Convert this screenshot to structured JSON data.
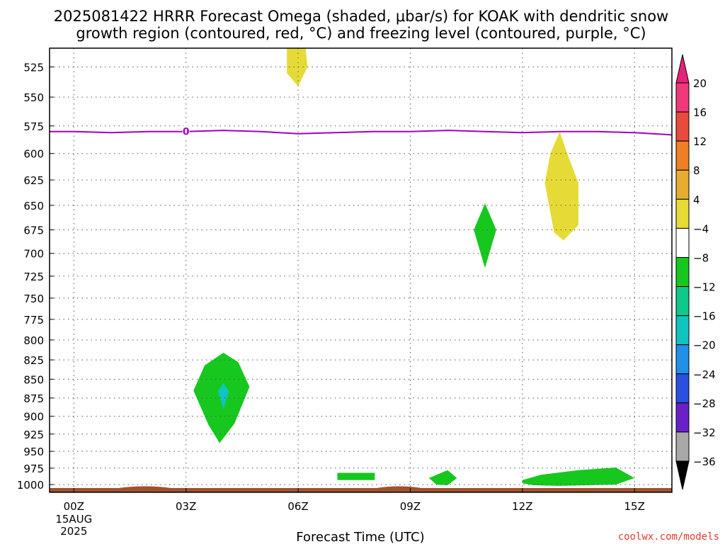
{
  "chart_data": {
    "type": "contour",
    "title_line1": "2025081422 HRRR Forecast Omega (shaded, μbar/s) for KOAK with dendritic snow",
    "title_line2": "growth region (contoured, red, °C) and freezing level (contoured, purple, °C)",
    "xlabel": "Forecast Time (UTC)",
    "credit": "coolwx.com/models",
    "x_axis": {
      "unit": "hours from 00Z 15AUG2025",
      "range": [
        -0.65,
        16.0
      ],
      "ticks": [
        {
          "x": 0,
          "label": "00Z",
          "sub1": "15AUG",
          "sub2": "2025"
        },
        {
          "x": 3,
          "label": "03Z"
        },
        {
          "x": 6,
          "label": "06Z"
        },
        {
          "x": 9,
          "label": "09Z"
        },
        {
          "x": 12,
          "label": "12Z"
        },
        {
          "x": 15,
          "label": "15Z"
        }
      ]
    },
    "y_axis": {
      "unit": "mb",
      "scale": "log",
      "range": [
        1012,
        510
      ],
      "ticks": [
        525,
        550,
        575,
        600,
        625,
        650,
        675,
        700,
        725,
        750,
        775,
        800,
        825,
        850,
        875,
        900,
        925,
        950,
        975,
        1000
      ]
    },
    "grid": true,
    "colorbar": {
      "labels": [
        "20",
        "16",
        "12",
        "8",
        "4",
        "−4",
        "−8",
        "−12",
        "−16",
        "−20",
        "−24",
        "−28",
        "−32",
        "−36"
      ],
      "colors": [
        "#f0387a",
        "#e84a3e",
        "#ee7f22",
        "#e6ad30",
        "#e6db36",
        "#ffffff",
        "#16c81e",
        "#10c88a",
        "#10c4c0",
        "#2090e8",
        "#2a50e0",
        "#6a20c8",
        "#a01ec8",
        "#a8a8a8"
      ],
      "over_color": "#e8207a",
      "under_color": "#000000"
    },
    "freezing_level": {
      "color": "#a000c8",
      "label": "0",
      "label_x": 3,
      "points": [
        [
          -0.65,
          580
        ],
        [
          0,
          580
        ],
        [
          1,
          581
        ],
        [
          2,
          580
        ],
        [
          3,
          580
        ],
        [
          4,
          579
        ],
        [
          5,
          580
        ],
        [
          6,
          582
        ],
        [
          7,
          581
        ],
        [
          8,
          580
        ],
        [
          9,
          580
        ],
        [
          10,
          579
        ],
        [
          11,
          580
        ],
        [
          12,
          581
        ],
        [
          13,
          580
        ],
        [
          14,
          580
        ],
        [
          15,
          581
        ],
        [
          16,
          583
        ]
      ]
    },
    "omega_regions": [
      {
        "value": "4 to 8",
        "color": "#e6db36",
        "points": [
          [
            5.7,
            510
          ],
          [
            6.2,
            510
          ],
          [
            6.25,
            525
          ],
          [
            6.0,
            541
          ],
          [
            5.7,
            530
          ]
        ]
      },
      {
        "value": "4 to 8",
        "color": "#e6db36",
        "points": [
          [
            13.0,
            580
          ],
          [
            13.2,
            600
          ],
          [
            13.5,
            628
          ],
          [
            13.5,
            670
          ],
          [
            13.1,
            686
          ],
          [
            12.85,
            678
          ],
          [
            12.6,
            628
          ],
          [
            12.75,
            600
          ]
        ]
      },
      {
        "value": "-4 to -8",
        "color": "#16c81e",
        "points": [
          [
            11.0,
            648
          ],
          [
            11.3,
            675
          ],
          [
            11.0,
            716
          ],
          [
            10.7,
            675
          ]
        ]
      },
      {
        "value": "-4 to -8",
        "color": "#16c81e",
        "points": [
          [
            4.0,
            816
          ],
          [
            4.4,
            828
          ],
          [
            4.7,
            860
          ],
          [
            4.3,
            910
          ],
          [
            3.9,
            938
          ],
          [
            3.6,
            912
          ],
          [
            3.2,
            865
          ],
          [
            3.5,
            832
          ]
        ]
      },
      {
        "value": "-12 to -16",
        "color": "#10c4c0",
        "points": [
          [
            4.0,
            855
          ],
          [
            4.15,
            866
          ],
          [
            4.0,
            890
          ],
          [
            3.85,
            866
          ]
        ]
      },
      {
        "value": "-4 to -8",
        "color": "#16c81e",
        "points": [
          [
            7.05,
            982
          ],
          [
            8.05,
            982
          ],
          [
            8.05,
            993
          ],
          [
            7.05,
            993
          ]
        ]
      },
      {
        "value": "-4 to -8",
        "color": "#16c81e",
        "points": [
          [
            9.5,
            990
          ],
          [
            10.0,
            978
          ],
          [
            10.25,
            990
          ],
          [
            10.0,
            1001
          ],
          [
            9.7,
            1000
          ]
        ]
      },
      {
        "value": "-4 to -8",
        "color": "#16c81e",
        "points": [
          [
            12.0,
            993
          ],
          [
            12.5,
            985
          ],
          [
            13.5,
            978
          ],
          [
            14.5,
            974
          ],
          [
            15.0,
            990
          ],
          [
            14.5,
            1000
          ],
          [
            13.0,
            1002
          ],
          [
            12.3,
            1001
          ],
          [
            12.0,
            998
          ]
        ]
      }
    ],
    "ground": {
      "color": "#a0522d",
      "bumps": [
        [
          1.2,
          2.6
        ],
        [
          8.1,
          9.3
        ]
      ]
    }
  }
}
